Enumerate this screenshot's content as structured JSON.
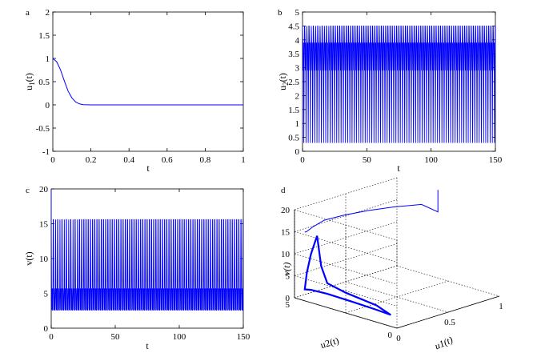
{
  "colors": {
    "series": "#0000ff",
    "axis": "#000000"
  },
  "chart_data": [
    {
      "panel_label": "a",
      "type": "line",
      "xlabel": "t",
      "ylabel": "u1(t)",
      "ylabel_main": "u",
      "ylabel_sub": "1",
      "ylabel_tail": "(t)",
      "xlim": [
        0,
        1
      ],
      "ylim": [
        -1,
        2
      ],
      "xticks": [
        "0",
        "0.2",
        "0.4",
        "0.6",
        "0.8",
        "1"
      ],
      "yticks": [
        "-1",
        "-0.5",
        "0",
        "0.5",
        "1",
        "1.5",
        "2"
      ],
      "series": [
        {
          "x": [
            0,
            0.02,
            0.04,
            0.06,
            0.08,
            0.1,
            0.12,
            0.14,
            0.16,
            0.18,
            0.2,
            0.3,
            0.5,
            0.7,
            1.0
          ],
          "y": [
            1.0,
            0.93,
            0.76,
            0.52,
            0.3,
            0.15,
            0.06,
            0.02,
            0.005,
            0.001,
            0,
            0,
            0,
            0,
            0
          ]
        }
      ]
    },
    {
      "panel_label": "b",
      "type": "line",
      "xlabel": "t",
      "ylabel": "u2(t)",
      "ylabel_main": "u",
      "ylabel_sub": "2",
      "ylabel_tail": "(t)",
      "xlim": [
        0,
        150
      ],
      "ylim": [
        0,
        5
      ],
      "xticks": [
        "0",
        "50",
        "100",
        "150"
      ],
      "yticks": [
        "0",
        "0.5",
        "1",
        "1.5",
        "2",
        "2.5",
        "3",
        "3.5",
        "4",
        "4.5",
        "5"
      ],
      "oscillation": {
        "min": 0.3,
        "max": 4.5,
        "inner_min": 2.9,
        "inner_max": 3.9,
        "cycles": 88,
        "transient_end": 20
      }
    },
    {
      "panel_label": "c",
      "type": "line",
      "xlabel": "t",
      "ylabel": "v(t)",
      "ylabel_main": "v",
      "ylabel_sub": "",
      "ylabel_tail": "(t)",
      "xlim": [
        0,
        150
      ],
      "ylim": [
        0,
        20
      ],
      "xticks": [
        "0",
        "50",
        "100",
        "150"
      ],
      "yticks": [
        "0",
        "5",
        "10",
        "15",
        "20"
      ],
      "oscillation": {
        "min": 2.6,
        "max": 15.6,
        "inner_min": 2.6,
        "inner_max": 5.7,
        "cycles": 88,
        "transient_end": 20,
        "start": 20
      }
    },
    {
      "panel_label": "d",
      "type": "line3d",
      "xlabel": "u1(t)",
      "ylabel": "u2(t)",
      "zlabel": "v(t)",
      "u1_ticks": [
        "0",
        "0.5",
        "1"
      ],
      "u2_ticks": [
        "0",
        "5"
      ],
      "v_ticks": [
        "0",
        "5",
        "10",
        "15",
        "20"
      ],
      "u1_lim": [
        0,
        1
      ],
      "u2_lim": [
        0,
        5
      ],
      "v_lim": [
        0,
        20
      ],
      "trajectory": {
        "u1": [
          1.0,
          1.0,
          0.9,
          0.7,
          0.5,
          0.3,
          0.15,
          0.06,
          0.02,
          0.0
        ],
        "u2": [
          3.0,
          3.0,
          3.3,
          3.6,
          3.9,
          4.1,
          4.3,
          4.4,
          4.5,
          4.5
        ],
        "v": [
          20.0,
          15.0,
          17.0,
          17.5,
          17.7,
          17.8,
          17.5,
          16.5,
          15.6,
          15.6
        ]
      },
      "limit_cycle": {
        "u1": 0,
        "u2_range": [
          0.3,
          4.5
        ],
        "v_range": [
          2.6,
          15.6
        ]
      }
    }
  ]
}
